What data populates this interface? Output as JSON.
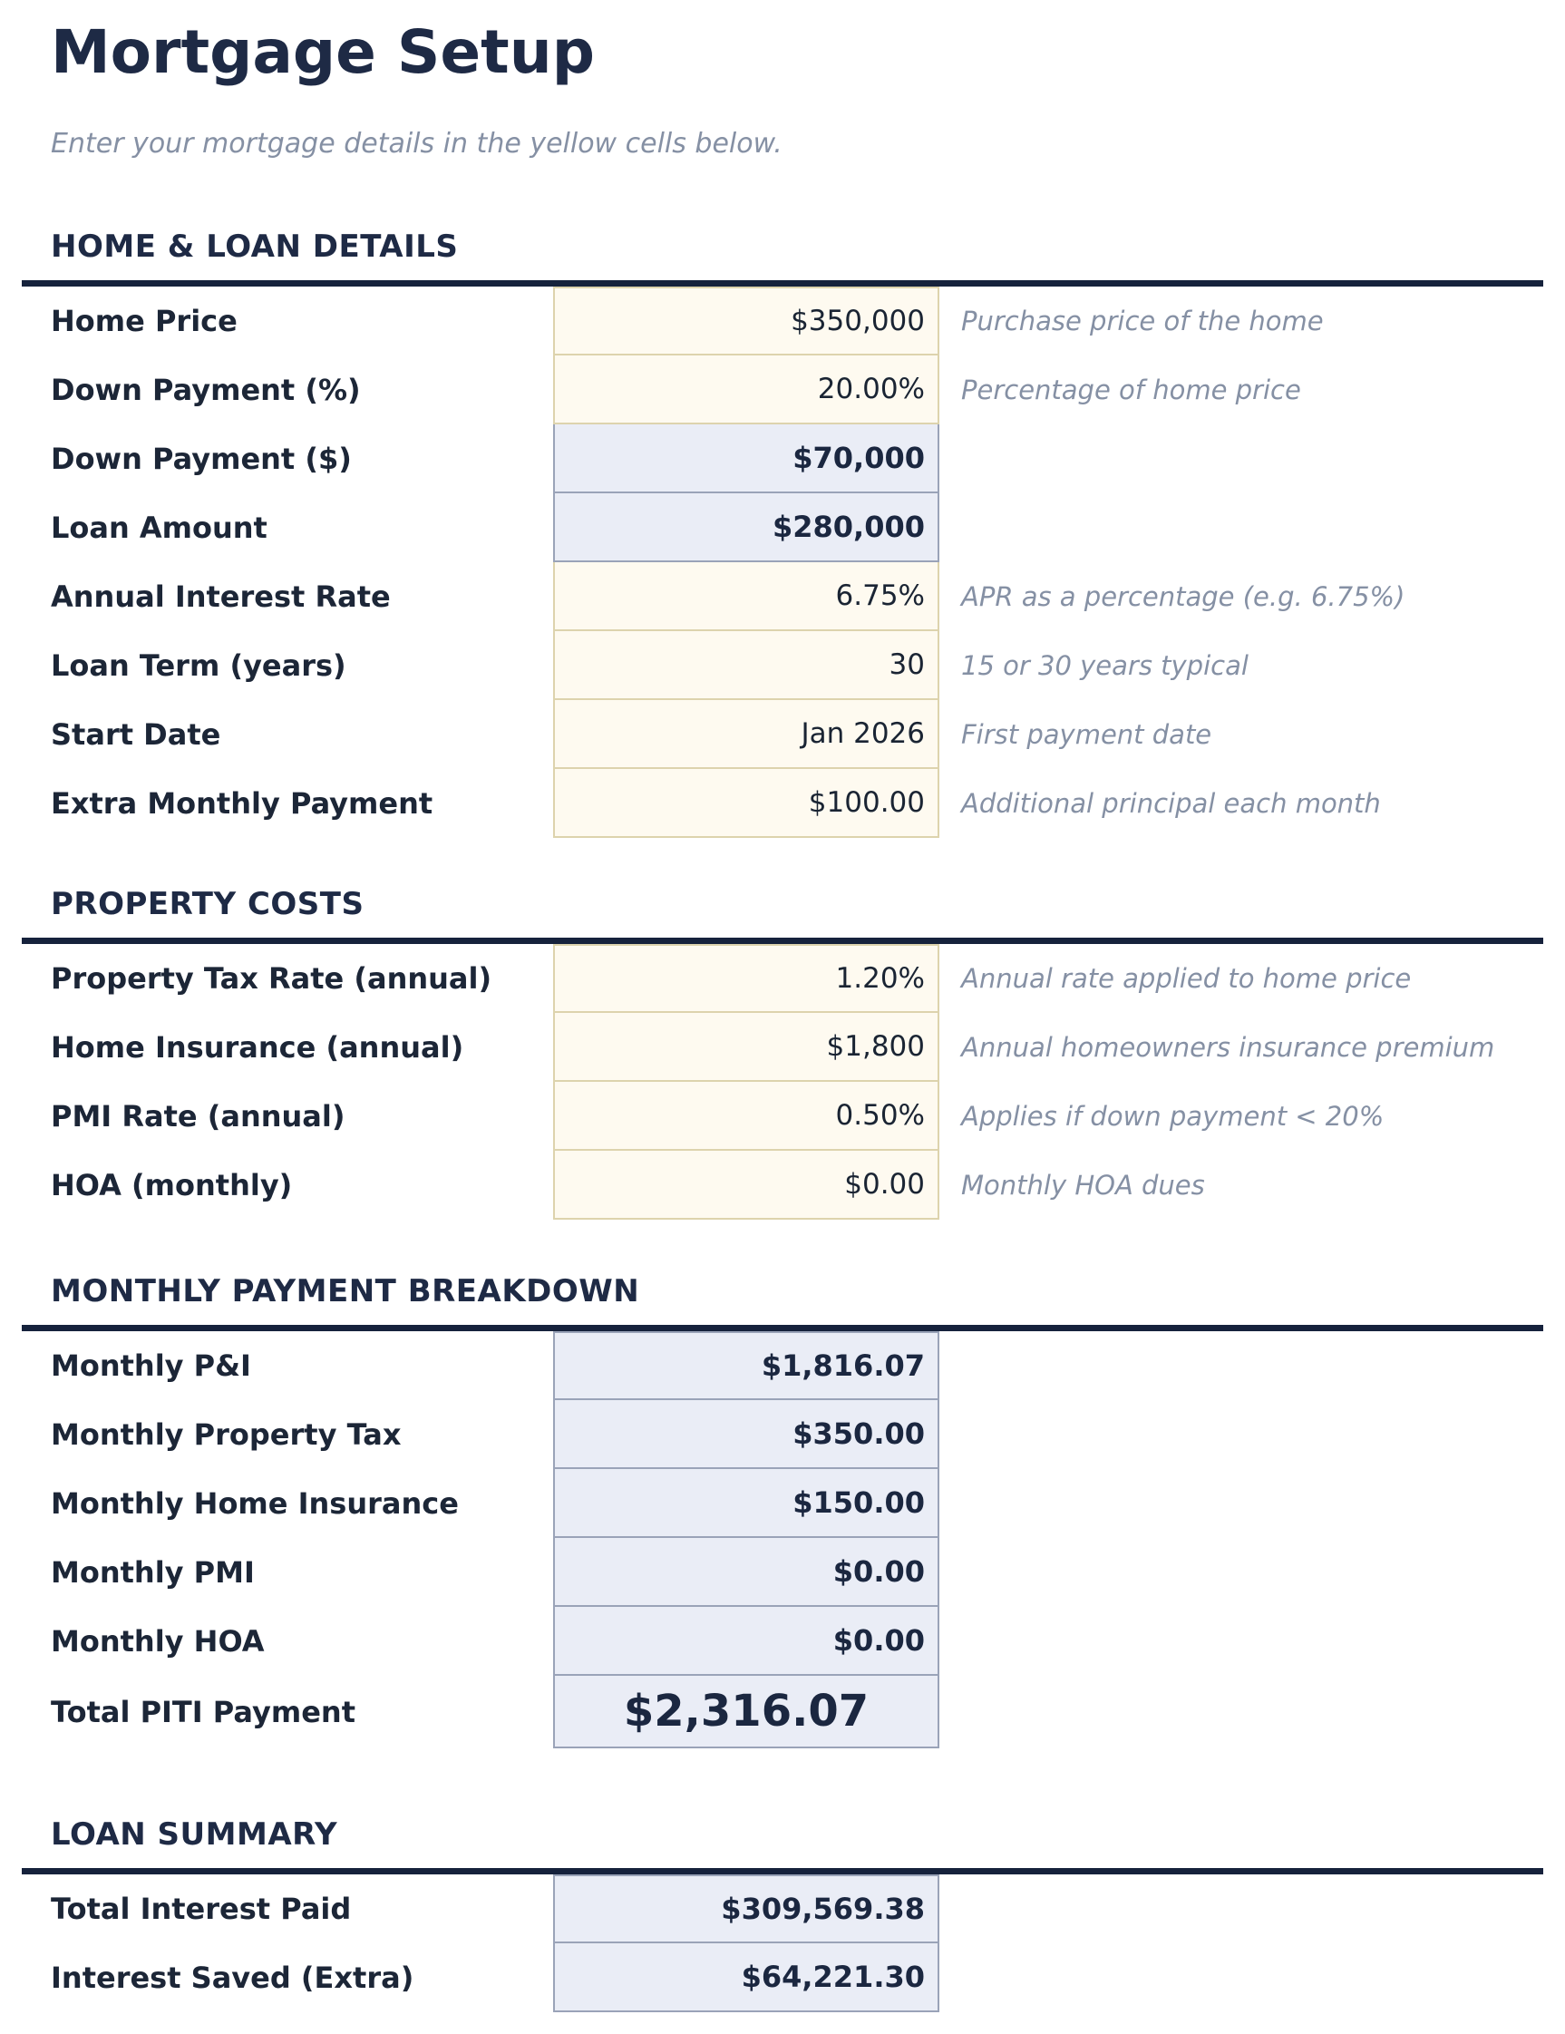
{
  "title": "Mortgage Setup",
  "subtitle": "Enter your mortgage details in the yellow cells below.",
  "colors": {
    "heading_navy": "#1e2a45",
    "divider_navy": "#16223c",
    "input_cell_bg": "#fefaf0",
    "input_cell_border": "#ddd3ad",
    "calc_cell_bg": "#eaedf6",
    "calc_cell_border": "#9aa3b8",
    "note_gray": "#8590a4"
  },
  "sections": [
    {
      "title": "HOME & LOAN DETAILS",
      "rows": [
        {
          "id": "home-price",
          "label": "Home Price",
          "value": "$350,000",
          "type": "input",
          "note": "Purchase price of the home"
        },
        {
          "id": "down-payment-percent",
          "label": "Down Payment (%)",
          "value": "20.00%",
          "type": "input",
          "note": "Percentage of home price"
        },
        {
          "id": "down-payment-dollars",
          "label": "Down Payment ($)",
          "value": "$70,000",
          "type": "calc",
          "note": ""
        },
        {
          "id": "loan-amount",
          "label": "Loan Amount",
          "value": "$280,000",
          "type": "calc",
          "note": ""
        },
        {
          "id": "annual-interest-rate",
          "label": "Annual Interest Rate",
          "value": "6.75%",
          "type": "input",
          "note": "APR as a percentage (e.g. 6.75%)"
        },
        {
          "id": "loan-term",
          "label": "Loan Term (years)",
          "value": "30",
          "type": "input",
          "note": "15 or 30 years typical"
        },
        {
          "id": "start-date",
          "label": "Start Date",
          "value": "Jan 2026",
          "type": "input",
          "note": "First payment date"
        },
        {
          "id": "extra-monthly-payment",
          "label": "Extra Monthly Payment",
          "value": "$100.00",
          "type": "input",
          "note": "Additional principal each month"
        }
      ]
    },
    {
      "title": "PROPERTY COSTS",
      "rows": [
        {
          "id": "property-tax-rate",
          "label": "Property Tax Rate (annual)",
          "value": "1.20%",
          "type": "input",
          "note": "Annual rate applied to home price"
        },
        {
          "id": "home-insurance",
          "label": "Home Insurance (annual)",
          "value": "$1,800",
          "type": "input",
          "note": "Annual homeowners insurance premium"
        },
        {
          "id": "pmi-rate",
          "label": "PMI Rate (annual)",
          "value": "0.50%",
          "type": "input",
          "note": "Applies if down payment < 20%"
        },
        {
          "id": "hoa-monthly",
          "label": "HOA (monthly)",
          "value": "$0.00",
          "type": "input",
          "note": "Monthly HOA dues"
        }
      ]
    },
    {
      "title": "MONTHLY PAYMENT BREAKDOWN",
      "rows": [
        {
          "id": "monthly-pi",
          "label": "Monthly P&I",
          "value": "$1,816.07",
          "type": "calc",
          "note": ""
        },
        {
          "id": "monthly-property-tax",
          "label": "Monthly Property Tax",
          "value": "$350.00",
          "type": "calc",
          "note": ""
        },
        {
          "id": "monthly-home-insurance",
          "label": "Monthly Home Insurance",
          "value": "$150.00",
          "type": "calc",
          "note": ""
        },
        {
          "id": "monthly-pmi",
          "label": "Monthly PMI",
          "value": "$0.00",
          "type": "calc",
          "note": ""
        },
        {
          "id": "monthly-hoa",
          "label": "Monthly HOA",
          "value": "$0.00",
          "type": "calc",
          "note": ""
        },
        {
          "id": "total-piti-payment",
          "label": "Total PITI Payment",
          "value": "$2,316.07",
          "type": "calc",
          "emphasis": true,
          "note": ""
        }
      ]
    },
    {
      "title": "LOAN SUMMARY",
      "rows": [
        {
          "id": "total-interest-paid",
          "label": "Total Interest Paid",
          "value": "$309,569.38",
          "type": "calc",
          "note": ""
        },
        {
          "id": "interest-saved-extra",
          "label": "Interest Saved (Extra)",
          "value": "$64,221.30",
          "type": "calc",
          "note": ""
        }
      ]
    }
  ]
}
